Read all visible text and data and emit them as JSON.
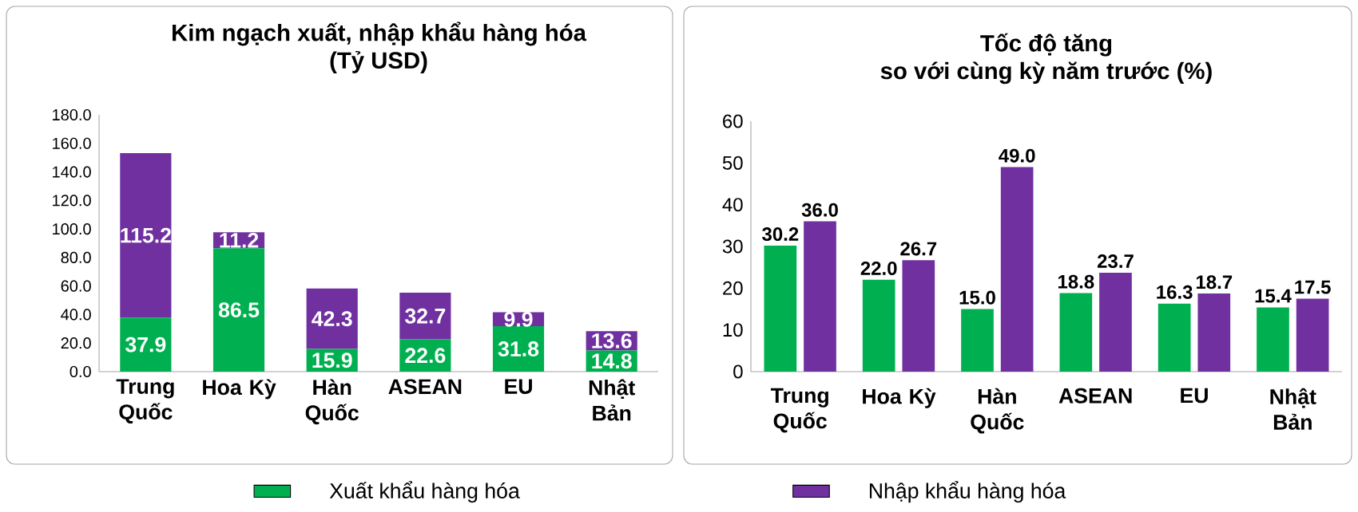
{
  "chart_data": [
    {
      "type": "bar",
      "title": "Kim ngạch xuất, nhập khẩu hàng hóa",
      "subtitle": "(Tỷ USD)",
      "stacked": true,
      "legend": "bottom",
      "categories": [
        "Trung Quốc",
        "Hoa Kỳ",
        "Hàn Quốc",
        "ASEAN",
        "EU",
        "Nhật Bản"
      ],
      "series": [
        {
          "name": "Xuất khẩu hàng hóa",
          "color": "#00b050",
          "values": [
            37.9,
            86.5,
            15.9,
            22.6,
            31.8,
            14.8
          ],
          "value_labels": [
            "37.9",
            "86.5",
            "15.9",
            "22.6",
            "31.8",
            "14.8"
          ]
        },
        {
          "name": "Nhập khẩu hàng hóa",
          "color": "#7030a0",
          "values": [
            115.2,
            11.2,
            42.3,
            32.7,
            9.9,
            13.6
          ],
          "value_labels": [
            "115.2",
            "11.2",
            "42.3",
            "32.7",
            "9.9",
            "13.6"
          ]
        }
      ],
      "ylim": [
        0,
        180
      ],
      "yticks": [
        {
          "value": 0,
          "label": "0.0"
        },
        {
          "value": 20,
          "label": "20.0"
        },
        {
          "value": 40,
          "label": "40.0"
        },
        {
          "value": 60,
          "label": "60.0"
        },
        {
          "value": 80,
          "label": "80.0"
        },
        {
          "value": 100,
          "label": "100.0"
        },
        {
          "value": 120,
          "label": "120.0"
        },
        {
          "value": 140,
          "label": "140.0"
        },
        {
          "value": 160,
          "label": "160.0"
        },
        {
          "value": 180,
          "label": "180.0"
        }
      ]
    },
    {
      "type": "bar",
      "title": "Tốc độ tăng",
      "subtitle": "so với cùng kỳ năm trước (%)",
      "categories": [
        "Trung Quốc",
        "Hoa Kỳ",
        "Hàn Quốc",
        "ASEAN",
        "EU",
        "Nhật Bản"
      ],
      "series": [
        {
          "color": "#00b050",
          "values": [
            30.2,
            22.0,
            15.0,
            18.8,
            16.3,
            15.4
          ],
          "value_labels": [
            "30.2",
            "22.0",
            "15.0",
            "18.8",
            "16.3",
            "15.4"
          ]
        },
        {
          "color": "#7030a0",
          "values": [
            36.0,
            26.7,
            49.0,
            23.7,
            18.7,
            17.5
          ],
          "value_labels": [
            "36.0",
            "26.7",
            "49.0",
            "23.7",
            "18.7",
            "17.5"
          ]
        }
      ],
      "ylim": [
        0,
        60
      ],
      "yticks": [
        0,
        10,
        20,
        30,
        40,
        50,
        60
      ]
    }
  ]
}
